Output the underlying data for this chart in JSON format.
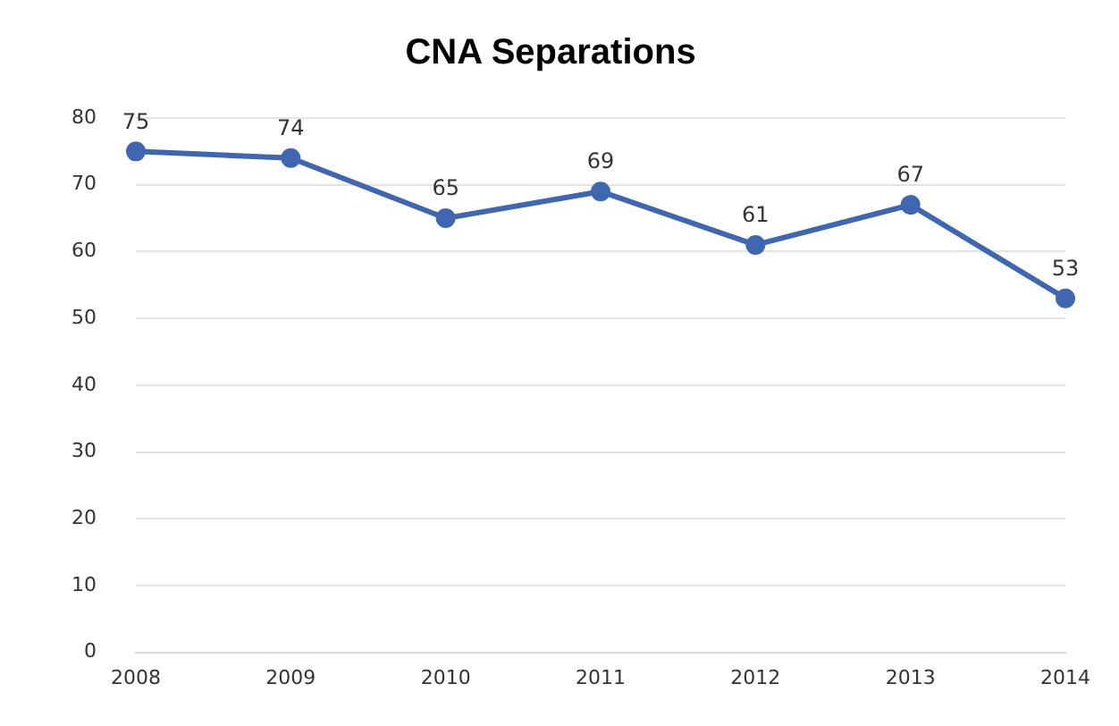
{
  "chart_data": {
    "type": "line",
    "title": "CNA Separations",
    "categories": [
      "2008",
      "2009",
      "2010",
      "2011",
      "2012",
      "2013",
      "2014"
    ],
    "series": [
      {
        "color": "#3f67b1",
        "values": [
          75,
          74,
          65,
          69,
          61,
          67,
          53
        ]
      }
    ],
    "ylim": [
      0,
      80
    ],
    "yticks": [
      0,
      10,
      20,
      30,
      40,
      50,
      60,
      70,
      80
    ],
    "grid": "y",
    "legend": false,
    "marker": "circle",
    "line_style": "solid",
    "data_labels": true
  }
}
